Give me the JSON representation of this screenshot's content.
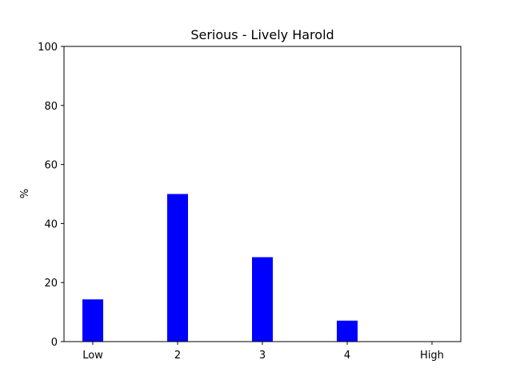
{
  "chart_data": {
    "type": "bar",
    "title": "Serious - Lively Harold",
    "xlabel": "",
    "ylabel": "%",
    "categories": [
      "Low",
      "2",
      "3",
      "4",
      "High"
    ],
    "values": [
      14.3,
      50.0,
      28.6,
      7.1,
      0.0
    ],
    "ylim": [
      0,
      100
    ],
    "yticks": [
      0,
      20,
      40,
      60,
      80,
      100
    ],
    "bar_color": "#0000ff",
    "grid": false,
    "legend": "none"
  }
}
